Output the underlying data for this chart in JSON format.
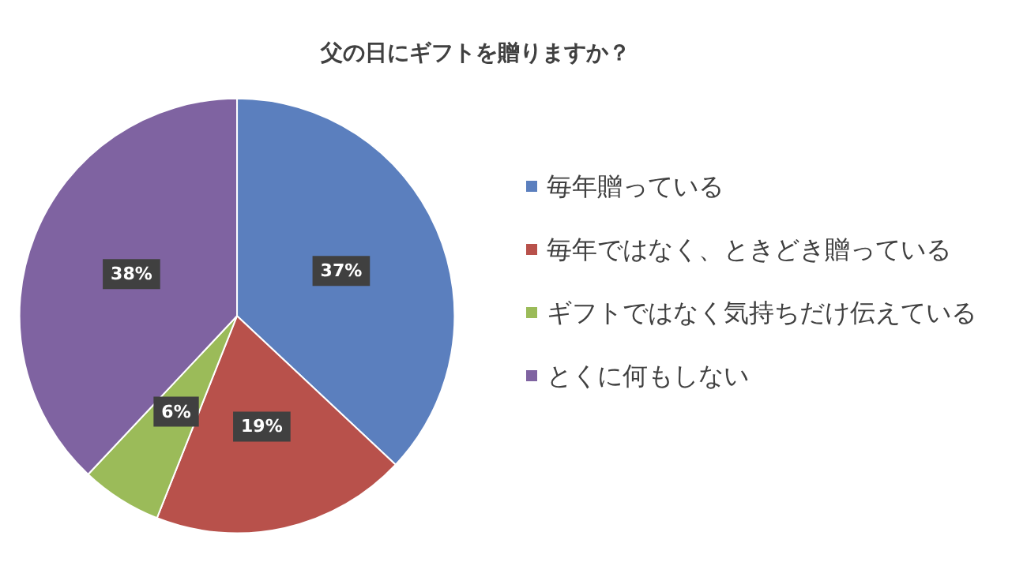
{
  "chart_data": {
    "type": "pie",
    "title": "父の日にギフトを贈りますか？",
    "categories": [
      "毎年贈っている",
      "毎年ではなく、ときどき贈っている",
      "ギフトではなく気持ちだけ伝えている",
      "とくに何もしない"
    ],
    "values": [
      37,
      19,
      6,
      38
    ],
    "colors": [
      "#5b7fbe",
      "#b8514b",
      "#9bbb59",
      "#7f63a1"
    ],
    "value_labels": [
      "37%",
      "19%",
      "6%",
      "38%"
    ],
    "legend": "right"
  }
}
